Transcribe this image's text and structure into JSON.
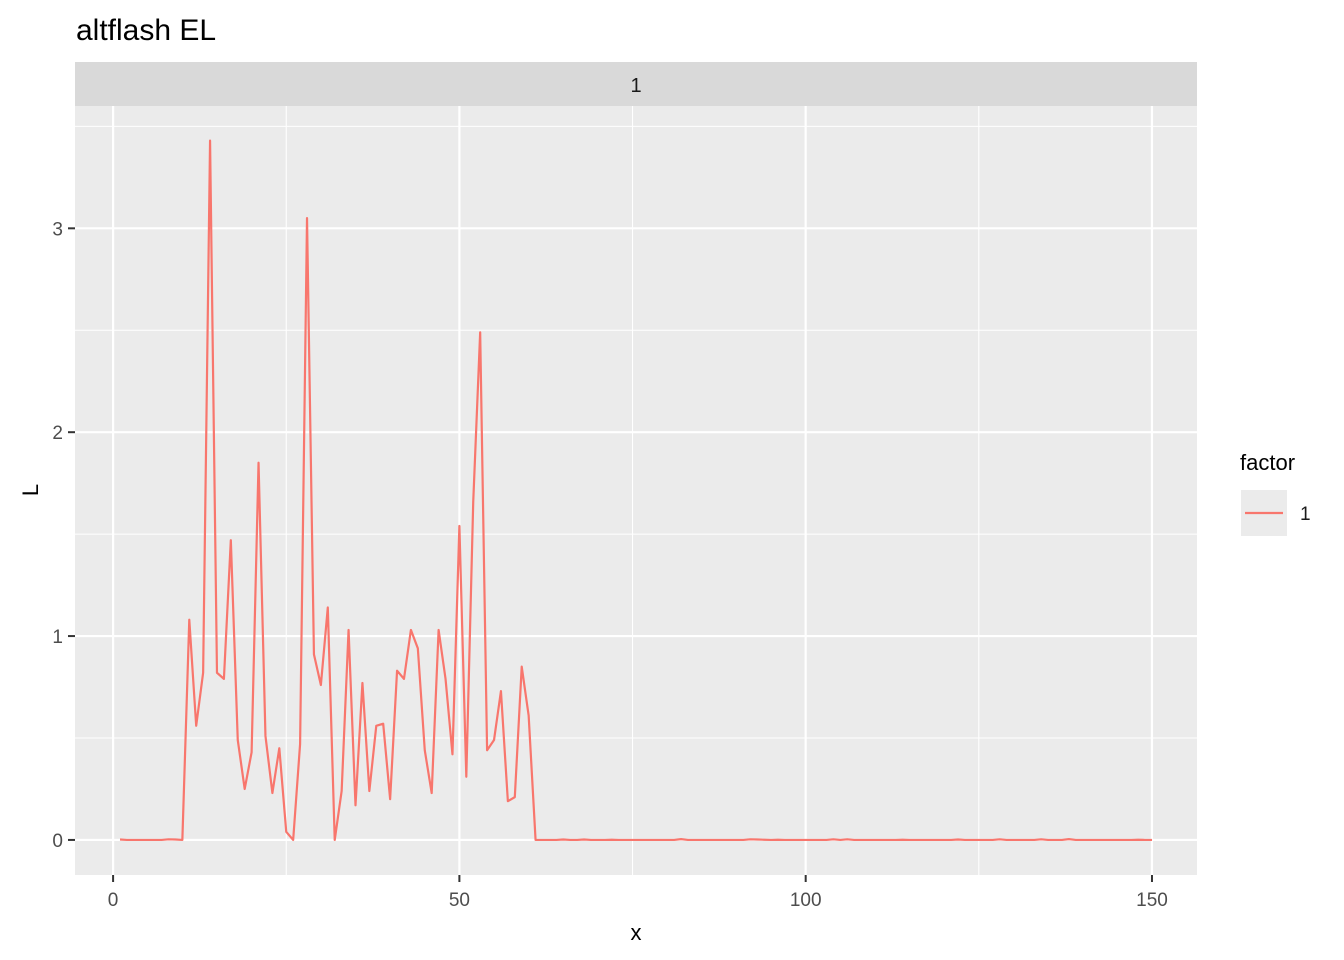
{
  "chart_data": {
    "type": "line",
    "title": "altflash EL",
    "facet_label": "1",
    "xlabel": "x",
    "ylabel": "L",
    "xlim": [
      -5.5,
      156.5
    ],
    "ylim": [
      -0.172,
      3.6
    ],
    "x_ticks": [
      0,
      50,
      100,
      150
    ],
    "x_tick_labels": [
      "0",
      "50",
      "100",
      "150"
    ],
    "y_ticks": [
      0,
      1,
      2,
      3
    ],
    "y_tick_labels": [
      "0",
      "1",
      "2",
      "3"
    ],
    "grid": true,
    "legend": {
      "title": "factor",
      "position": "right",
      "entries": [
        "1"
      ]
    },
    "colors": {
      "panel_bg": "#EBEBEB",
      "strip_bg": "#D9D9D9",
      "grid": "#FFFFFF",
      "line": "#F8766D",
      "text": "#000000",
      "tick_text": "#4D4D4D"
    },
    "series": [
      {
        "name": "1",
        "x": [
          1,
          2,
          3,
          4,
          5,
          6,
          7,
          8,
          9,
          10,
          11,
          12,
          13,
          14,
          15,
          16,
          17,
          18,
          19,
          20,
          21,
          22,
          23,
          24,
          25,
          26,
          27,
          28,
          29,
          30,
          31,
          32,
          33,
          34,
          35,
          36,
          37,
          38,
          39,
          40,
          41,
          42,
          43,
          44,
          45,
          46,
          47,
          48,
          49,
          50,
          51,
          52,
          53,
          54,
          55,
          56,
          57,
          58,
          59,
          60,
          61,
          62,
          63,
          64,
          65,
          66,
          67,
          68,
          69,
          70,
          71,
          72,
          73,
          74,
          75,
          76,
          77,
          78,
          79,
          80,
          81,
          82,
          83,
          84,
          85,
          86,
          87,
          88,
          89,
          90,
          91,
          92,
          93,
          94,
          95,
          96,
          97,
          98,
          99,
          100,
          101,
          102,
          103,
          104,
          105,
          106,
          107,
          108,
          109,
          110,
          111,
          112,
          113,
          114,
          115,
          116,
          117,
          118,
          119,
          120,
          121,
          122,
          123,
          124,
          125,
          126,
          127,
          128,
          129,
          130,
          131,
          132,
          133,
          134,
          135,
          136,
          137,
          138,
          139,
          140,
          141,
          142,
          143,
          144,
          145,
          146,
          147,
          148,
          149,
          150
        ],
        "values": [
          0.002,
          0.0,
          0.0,
          0.0,
          0.0,
          0.0,
          0.0,
          0.003,
          0.002,
          0.0,
          1.08,
          0.56,
          0.82,
          3.43,
          0.82,
          0.79,
          1.47,
          0.49,
          0.25,
          0.43,
          1.85,
          0.51,
          0.23,
          0.45,
          0.04,
          0.0,
          0.47,
          3.05,
          0.91,
          0.76,
          1.14,
          0.0,
          0.24,
          1.03,
          0.17,
          0.77,
          0.24,
          0.56,
          0.57,
          0.2,
          0.83,
          0.79,
          1.03,
          0.94,
          0.44,
          0.23,
          1.03,
          0.79,
          0.42,
          1.54,
          0.31,
          1.66,
          2.49,
          0.44,
          0.49,
          0.73,
          0.19,
          0.21,
          0.85,
          0.61,
          0.0,
          0.0,
          0.0,
          0.0,
          0.002,
          0.0,
          0.0,
          0.002,
          0.0,
          0.0,
          0.0,
          0.001,
          0.0,
          0.0,
          0.0,
          0.0,
          0.0,
          0.0,
          0.0,
          0.0,
          0.0,
          0.004,
          0.0,
          0.0,
          0.0,
          0.0,
          0.0,
          0.0,
          0.0,
          0.0,
          0.0,
          0.003,
          0.002,
          0.001,
          0.0,
          0.001,
          0.0,
          0.0,
          0.0,
          0.0,
          0.0,
          0.0,
          0.0,
          0.003,
          0.0,
          0.003,
          0.0,
          0.0,
          0.0,
          0.0,
          0.0,
          0.0,
          0.0,
          0.001,
          0.0,
          0.0,
          0.0,
          0.0,
          0.0,
          0.0,
          0.0,
          0.002,
          0.0,
          0.0,
          0.0,
          0.0,
          0.0,
          0.003,
          0.0,
          0.0,
          0.0,
          0.0,
          0.0,
          0.003,
          0.0,
          0.0,
          0.0,
          0.004,
          0.0,
          0.0,
          0.0,
          0.0,
          0.0,
          0.0,
          0.0,
          0.0,
          0.0,
          0.001,
          0.0,
          0.0
        ]
      }
    ]
  }
}
